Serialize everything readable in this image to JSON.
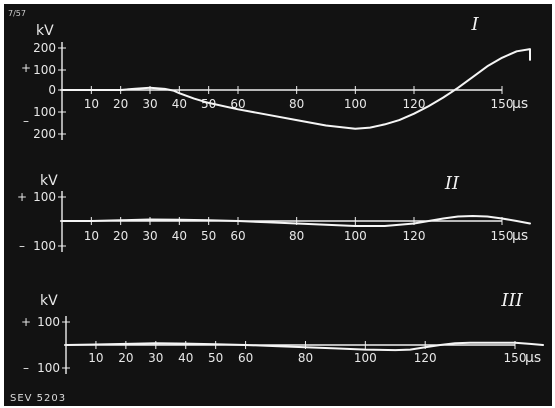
{
  "chart_data": [
    {
      "type": "line",
      "panel_label": "I",
      "y_unit": "kV",
      "x_unit": "µs",
      "x_ticks": [
        "10",
        "20",
        "30",
        "40",
        "50",
        "60",
        "80",
        "100",
        "120",
        "150"
      ],
      "y_ticks": [
        "200",
        "100",
        "0",
        "100",
        "200"
      ],
      "y_sign_labels": [
        "+",
        "–"
      ],
      "ylim": [
        -200,
        200
      ],
      "x": [
        0,
        10,
        20,
        25,
        30,
        35,
        38,
        40,
        45,
        50,
        60,
        70,
        80,
        90,
        100,
        105,
        110,
        115,
        120,
        125,
        130,
        135,
        140,
        145,
        150,
        155,
        160,
        165,
        170
      ],
      "y": [
        0,
        0,
        0,
        6,
        10,
        5,
        -3,
        -15,
        -40,
        -60,
        -90,
        -115,
        -140,
        -165,
        -180,
        -175,
        -160,
        -140,
        -110,
        -75,
        -35,
        10,
        60,
        110,
        150,
        180,
        190,
        170,
        140
      ]
    },
    {
      "type": "line",
      "panel_label": "II",
      "y_unit": "kV",
      "x_unit": "µs",
      "x_ticks": [
        "10",
        "20",
        "30",
        "40",
        "50",
        "60",
        "80",
        "100",
        "120",
        "150"
      ],
      "y_ticks": [
        "100",
        "100"
      ],
      "y_sign_labels": [
        "+",
        "–"
      ],
      "ylim": [
        -150,
        150
      ],
      "x": [
        0,
        10,
        20,
        30,
        40,
        50,
        60,
        70,
        80,
        90,
        100,
        110,
        120,
        125,
        130,
        135,
        140,
        145,
        150,
        155,
        160
      ],
      "y": [
        0,
        0,
        3,
        6,
        5,
        3,
        0,
        -5,
        -10,
        -15,
        -20,
        -20,
        -10,
        0,
        10,
        18,
        20,
        18,
        10,
        0,
        -10
      ]
    },
    {
      "type": "line",
      "panel_label": "III",
      "y_unit": "kV",
      "x_unit": "µs",
      "x_ticks": [
        "10",
        "20",
        "30",
        "40",
        "50",
        "60",
        "80",
        "100",
        "120",
        "150"
      ],
      "y_ticks": [
        "100",
        "100"
      ],
      "y_sign_labels": [
        "+",
        "–"
      ],
      "ylim": [
        -150,
        150
      ],
      "x": [
        0,
        10,
        20,
        30,
        40,
        50,
        60,
        70,
        80,
        90,
        100,
        110,
        115,
        120,
        125,
        130,
        135,
        140,
        145,
        150,
        155,
        160
      ],
      "y": [
        0,
        2,
        5,
        8,
        6,
        3,
        0,
        -5,
        -10,
        -15,
        -20,
        -22,
        -20,
        -10,
        0,
        8,
        10,
        10,
        10,
        10,
        5,
        0
      ]
    }
  ],
  "corner_mark": "7/57",
  "plate_reference": "SEV 5203"
}
